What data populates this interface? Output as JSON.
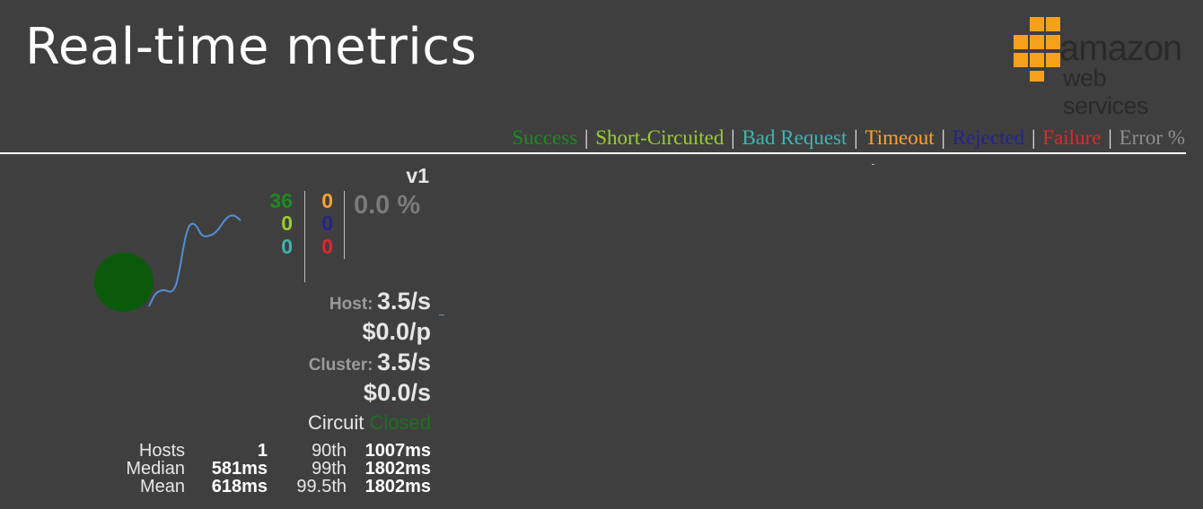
{
  "header": {
    "title": "Real-time metrics"
  },
  "logo": {
    "line1": "amazon",
    "line2": "web services",
    "cube_color": "#f7a11a"
  },
  "legend": [
    {
      "label": "Success",
      "color": "#1f8a1f"
    },
    {
      "label": "Short-Circuited",
      "color": "#9acd32"
    },
    {
      "label": "Bad Request",
      "color": "#3fb4b4"
    },
    {
      "label": "Timeout",
      "color": "#ff9f2e"
    },
    {
      "label": "Rejected",
      "color": "#23238e"
    },
    {
      "label": "Failure",
      "color": "#e3262c"
    },
    {
      "label": "Error %",
      "color": "#8e8e8e"
    }
  ],
  "circuit": {
    "name": "v1",
    "counts": {
      "success": "36",
      "short_circuited": "0",
      "bad_request": "0",
      "timeout": "0",
      "rejected": "0",
      "failure": "0"
    },
    "error_percent": "0.0 %",
    "host_label": "Host:",
    "host_rate": "3.5/s",
    "host_cost": "$0.0/p",
    "cluster_label": "Cluster:",
    "cluster_rate": "3.5/s",
    "cluster_cost": "$0.0/s",
    "circuit_label": "Circuit",
    "circuit_status": "Closed",
    "status_color": "#1f6e1f",
    "sparkline_color": "#4f8fd6",
    "stats": {
      "hosts_label": "Hosts",
      "hosts_value": "1",
      "median_label": "Median",
      "median_value": "581ms",
      "mean_label": "Mean",
      "mean_value": "618ms",
      "p90_label": "90th",
      "p90_value": "1007ms",
      "p99_label": "99th",
      "p99_value": "1802ms",
      "p995_label": "99.5th",
      "p995_value": "1802ms"
    }
  }
}
